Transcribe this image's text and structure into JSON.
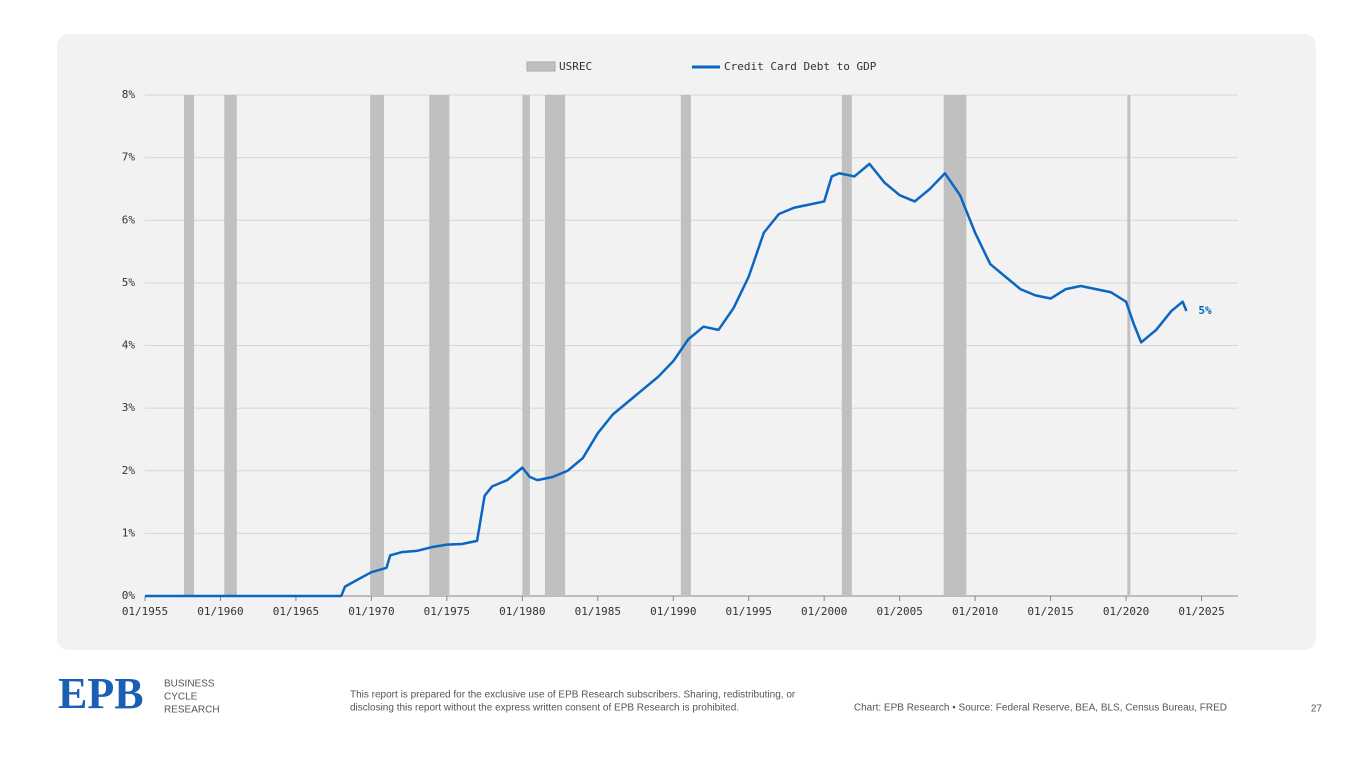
{
  "chart_data": {
    "type": "line",
    "legend": "top",
    "grid": true,
    "series": [
      {
        "name": "USREC",
        "type": "recession",
        "color": "#c0c0c0",
        "periods": [
          [
            "1957-08",
            "1958-04"
          ],
          [
            "1960-04",
            "1961-02"
          ],
          [
            "1969-12",
            "1970-11"
          ],
          [
            "1973-11",
            "1975-03"
          ],
          [
            "1980-01",
            "1980-07"
          ],
          [
            "1981-07",
            "1982-11"
          ],
          [
            "1990-07",
            "1991-03"
          ],
          [
            "2001-03",
            "2001-11"
          ],
          [
            "2007-12",
            "2009-06"
          ],
          [
            "2020-02",
            "2020-04"
          ]
        ]
      },
      {
        "name": "Credit Card Debt to GDP",
        "type": "line",
        "color": "#0a66c2",
        "x": [
          "1955-01",
          "1968-01",
          "1968-04",
          "1969-01",
          "1970-01",
          "1971-01",
          "1971-04",
          "1972-01",
          "1973-01",
          "1974-01",
          "1975-01",
          "1976-01",
          "1977-01",
          "1977-07",
          "1978-01",
          "1979-01",
          "1980-01",
          "1980-07",
          "1981-01",
          "1982-01",
          "1983-01",
          "1984-01",
          "1985-01",
          "1986-01",
          "1987-01",
          "1988-01",
          "1989-01",
          "1990-01",
          "1991-01",
          "1992-01",
          "1993-01",
          "1994-01",
          "1995-01",
          "1996-01",
          "1997-01",
          "1998-01",
          "1999-01",
          "2000-01",
          "2000-07",
          "2001-01",
          "2002-01",
          "2003-01",
          "2004-01",
          "2005-01",
          "2006-01",
          "2007-01",
          "2008-01",
          "2009-01",
          "2010-01",
          "2011-01",
          "2012-01",
          "2013-01",
          "2014-01",
          "2015-01",
          "2016-01",
          "2017-01",
          "2018-01",
          "2019-01",
          "2020-01",
          "2020-07",
          "2021-01",
          "2022-01",
          "2023-01",
          "2023-10",
          "2024-01"
        ],
        "values": [
          0,
          0,
          0.15,
          0.25,
          0.38,
          0.45,
          0.65,
          0.7,
          0.72,
          0.78,
          0.82,
          0.83,
          0.88,
          1.6,
          1.75,
          1.85,
          2.05,
          1.9,
          1.85,
          1.9,
          2.0,
          2.2,
          2.6,
          2.9,
          3.1,
          3.3,
          3.5,
          3.75,
          4.1,
          4.3,
          4.25,
          4.6,
          5.1,
          5.8,
          6.1,
          6.2,
          6.25,
          6.3,
          6.7,
          6.75,
          6.7,
          6.9,
          6.6,
          6.4,
          6.3,
          6.5,
          6.75,
          6.4,
          5.8,
          5.3,
          5.1,
          4.9,
          4.8,
          4.75,
          4.9,
          4.95,
          4.9,
          4.85,
          4.7,
          4.35,
          4.05,
          4.25,
          4.55,
          4.7,
          4.55
        ],
        "value_labels": [
          null,
          null,
          null,
          null,
          null,
          null,
          null,
          null,
          null,
          null,
          null,
          null,
          null,
          null,
          null,
          null,
          null,
          null,
          null,
          null,
          null,
          null,
          null,
          null,
          null,
          null,
          null,
          null,
          null,
          null,
          null,
          null,
          null,
          null,
          null,
          null,
          null,
          null,
          null,
          null,
          null,
          null,
          null,
          null,
          null,
          null,
          null,
          null,
          null,
          null,
          null,
          null,
          null,
          null,
          null,
          null,
          null,
          null,
          null,
          null,
          null,
          null,
          null,
          null,
          "5%"
        ]
      }
    ],
    "xlim": [
      "1955-01",
      "2027-06"
    ],
    "xticks": [
      {
        "value": "1955-01",
        "label": "01/1955"
      },
      {
        "value": "1960-01",
        "label": "01/1960"
      },
      {
        "value": "1965-01",
        "label": "01/1965"
      },
      {
        "value": "1970-01",
        "label": "01/1970"
      },
      {
        "value": "1975-01",
        "label": "01/1975"
      },
      {
        "value": "1980-01",
        "label": "01/1980"
      },
      {
        "value": "1985-01",
        "label": "01/1985"
      },
      {
        "value": "1990-01",
        "label": "01/1990"
      },
      {
        "value": "1995-01",
        "label": "01/1995"
      },
      {
        "value": "2000-01",
        "label": "01/2000"
      },
      {
        "value": "2005-01",
        "label": "01/2005"
      },
      {
        "value": "2010-01",
        "label": "01/2010"
      },
      {
        "value": "2015-01",
        "label": "01/2015"
      },
      {
        "value": "2020-01",
        "label": "01/2020"
      },
      {
        "value": "2025-01",
        "label": "01/2025"
      }
    ],
    "ylim": [
      0,
      8
    ],
    "yticks": [
      {
        "value": 0,
        "label": "0%"
      },
      {
        "value": 1,
        "label": "1%"
      },
      {
        "value": 2,
        "label": "2%"
      },
      {
        "value": 3,
        "label": "3%"
      },
      {
        "value": 4,
        "label": "4%"
      },
      {
        "value": 5,
        "label": "5%"
      },
      {
        "value": 6,
        "label": "6%"
      },
      {
        "value": 7,
        "label": "7%"
      },
      {
        "value": 8,
        "label": "8%"
      }
    ]
  },
  "footer": {
    "logo": "EPB",
    "brand": [
      "BUSINESS",
      "CYCLE",
      "RESEARCH"
    ],
    "disclaimer": [
      "This report is prepared for the exclusive use of EPB Research subscribers. Sharing, redistributing, or",
      "disclosing this report without the express written consent of EPB Research is prohibited."
    ],
    "credit": "Chart: EPB Research  •  Source: Federal Reserve, BEA, BLS, Census Bureau, FRED",
    "page": "27"
  }
}
